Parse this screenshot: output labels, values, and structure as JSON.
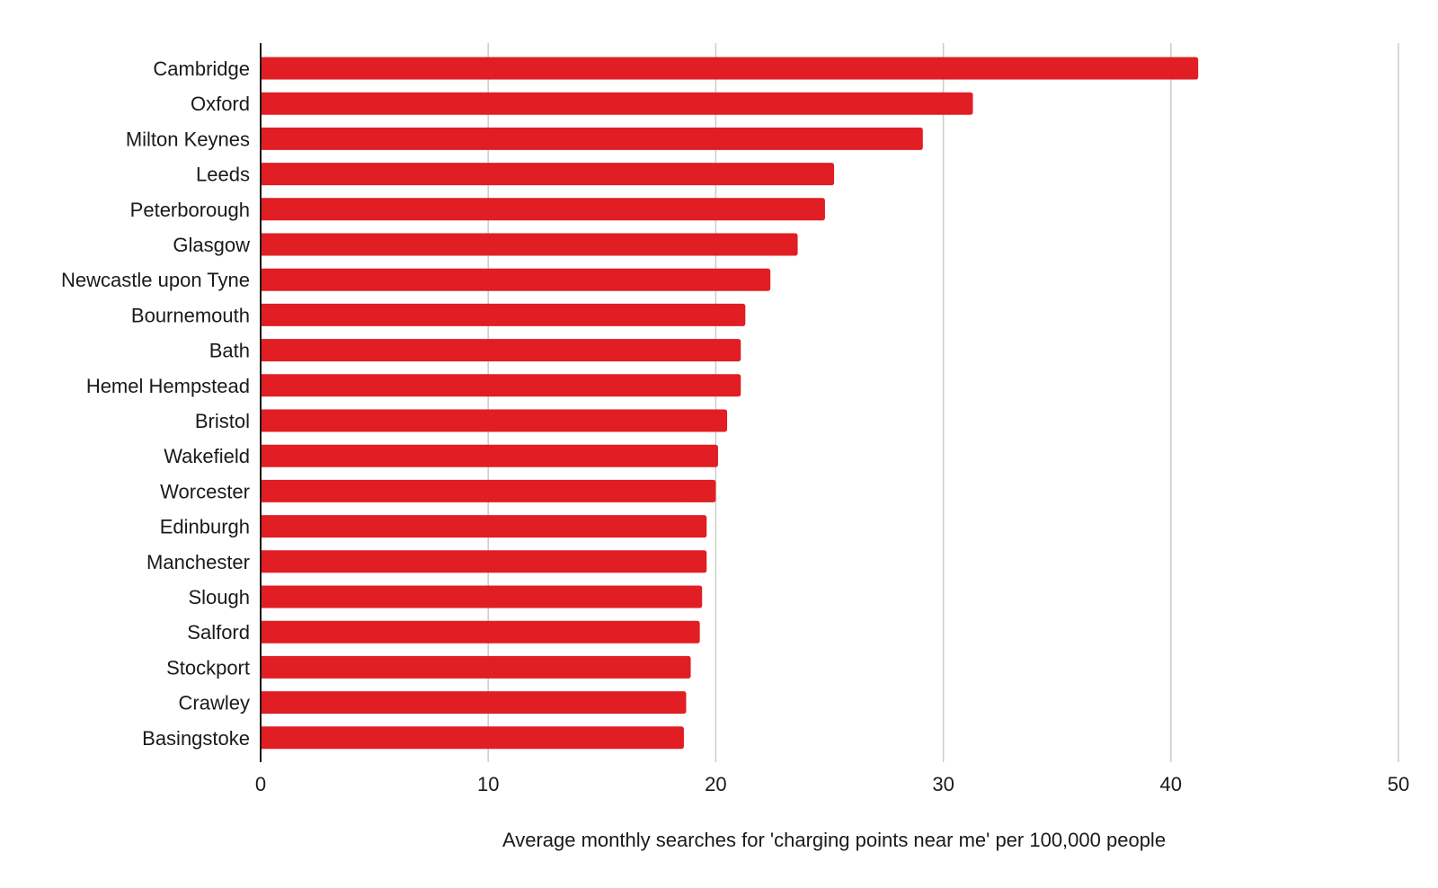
{
  "chart_data": {
    "type": "bar",
    "orientation": "horizontal",
    "title": "",
    "xlabel": "Average monthly searches for 'charging points near me' per 100,000 people",
    "ylabel": "",
    "xlim": [
      0,
      50
    ],
    "xticks": [
      0,
      10,
      20,
      30,
      40,
      50
    ],
    "grid": true,
    "legend": "none",
    "bar_color": "#e01e24",
    "categories": [
      "Cambridge",
      "Oxford",
      "Milton Keynes",
      "Leeds",
      "Peterborough",
      "Glasgow",
      "Newcastle upon Tyne",
      "Bournemouth",
      "Bath",
      "Hemel Hempstead",
      "Bristol",
      "Wakefield",
      "Worcester",
      "Edinburgh",
      "Manchester",
      "Slough",
      "Salford",
      "Stockport",
      "Crawley",
      "Basingstoke"
    ],
    "values": [
      41.2,
      31.3,
      29.1,
      25.2,
      24.8,
      23.6,
      22.4,
      21.3,
      21.1,
      21.1,
      20.5,
      20.1,
      20.0,
      19.6,
      19.6,
      19.4,
      19.3,
      18.9,
      18.7,
      18.6
    ]
  }
}
